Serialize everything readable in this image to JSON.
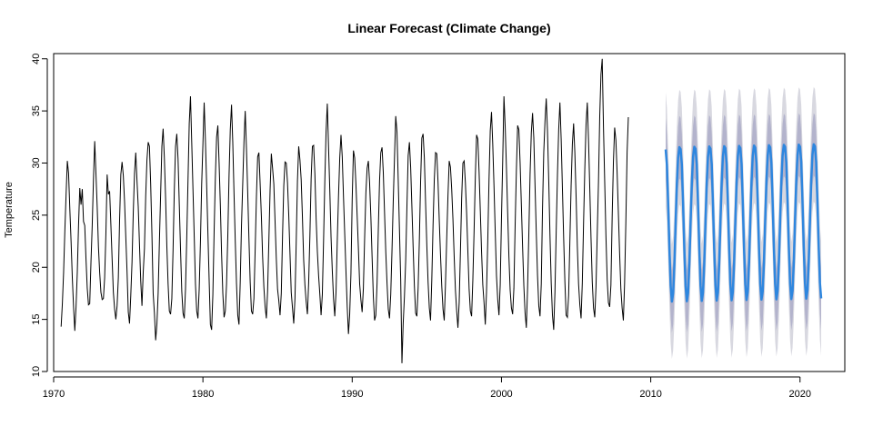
{
  "chart_data": {
    "type": "line",
    "title": "Linear Forecast (Climate Change)",
    "xlabel": "",
    "ylabel": "Temperature",
    "xlim": [
      1970,
      2023
    ],
    "ylim": [
      10,
      40.5
    ],
    "x_ticks": [
      1970,
      1980,
      1990,
      2000,
      2010,
      2020
    ],
    "y_ticks": [
      10,
      15,
      20,
      25,
      30,
      35,
      40
    ],
    "grid": false,
    "legend": "none",
    "colors": {
      "observed": "#000000",
      "forecast": "#2e86de",
      "ci80": "#b3b3cc",
      "ci95": "#d8d8e0"
    },
    "observed": {
      "start_year": 1970.5,
      "step": 0.08333,
      "values": [
        14.3,
        16.5,
        19.5,
        23.5,
        27.0,
        30.2,
        29.0,
        25.6,
        22.5,
        19.0,
        16.2,
        13.9,
        16.2,
        19.5,
        24.0,
        27.6,
        26.0,
        27.5,
        24.4,
        24.0,
        20.8,
        18.0,
        16.4,
        16.5,
        20.5,
        24.0,
        28.4,
        32.1,
        29.0,
        25.8,
        22.0,
        19.5,
        17.6,
        16.9,
        17.0,
        19.0,
        23.2,
        28.9,
        27.0,
        27.3,
        24.1,
        20.8,
        17.6,
        16.0,
        15.0,
        16.3,
        19.0,
        24.5,
        28.9,
        30.1,
        28.8,
        26.3,
        22.9,
        19.6,
        15.7,
        14.6,
        17.3,
        20.5,
        25.2,
        29.0,
        31.0,
        28.3,
        25.8,
        22.2,
        18.7,
        16.3,
        19.5,
        21.8,
        26.8,
        30.3,
        32.0,
        31.6,
        28.0,
        23.2,
        17.5,
        15.6,
        13.0,
        14.5,
        17.5,
        22.4,
        27.0,
        31.6,
        33.3,
        30.5,
        26.6,
        22.0,
        18.4,
        15.8,
        15.5,
        17.0,
        21.7,
        27.4,
        31.6,
        32.8,
        30.4,
        26.0,
        21.7,
        17.7,
        15.6,
        15.1,
        17.9,
        22.8,
        28.3,
        33.8,
        36.4,
        32.0,
        27.5,
        23.0,
        18.4,
        15.8,
        15.1,
        17.9,
        22.4,
        28.0,
        31.8,
        35.8,
        32.2,
        27.9,
        23.3,
        18.8,
        14.5,
        14.0,
        17.4,
        23.4,
        28.6,
        32.5,
        33.6,
        30.0,
        26.0,
        21.3,
        17.5,
        15.2,
        15.8,
        18.4,
        23.0,
        28.8,
        33.2,
        35.6,
        32.0,
        27.1,
        22.5,
        18.4,
        15.4,
        14.5,
        18.6,
        24.0,
        28.0,
        32.0,
        35.0,
        31.4,
        27.2,
        22.7,
        18.6,
        15.8,
        15.5,
        17.0,
        21.7,
        26.7,
        30.6,
        31.0,
        28.0,
        24.9,
        21.0,
        18.1,
        16.2,
        15.1,
        17.7,
        22.5,
        27.4,
        30.9,
        29.5,
        28.0,
        24.4,
        20.8,
        17.9,
        16.8,
        15.4,
        17.5,
        23.0,
        27.8,
        30.1,
        30.0,
        28.1,
        25.0,
        21.3,
        17.6,
        16.1,
        14.6,
        17.0,
        22.4,
        28.3,
        31.6,
        30.3,
        28.4,
        24.8,
        20.7,
        18.3,
        16.7,
        15.5,
        18.5,
        23.0,
        28.5,
        31.6,
        31.7,
        29.0,
        24.7,
        21.5,
        19.2,
        17.4,
        15.4,
        17.4,
        22.6,
        28.3,
        33.0,
        35.7,
        31.5,
        27.4,
        22.9,
        19.7,
        17.0,
        15.3,
        17.6,
        22.5,
        26.8,
        30.5,
        32.7,
        30.6,
        26.8,
        23.2,
        19.6,
        16.2,
        13.6,
        15.5,
        19.4,
        26.5,
        31.2,
        30.5,
        28.0,
        24.9,
        21.8,
        18.4,
        16.9,
        15.7,
        18.0,
        22.8,
        27.1,
        29.5,
        30.2,
        28.1,
        24.9,
        21.0,
        17.2,
        14.9,
        15.4,
        18.5,
        23.6,
        28.3,
        31.0,
        31.5,
        29.1,
        25.3,
        21.5,
        18.5,
        16.0,
        15.1,
        17.4,
        21.6,
        26.3,
        30.5,
        34.5,
        33.0,
        28.4,
        23.6,
        18.8,
        10.8,
        14.6,
        17.2,
        20.6,
        25.8,
        30.7,
        32.0,
        29.6,
        25.8,
        21.9,
        18.2,
        15.6,
        15.3,
        18.0,
        22.6,
        28.2,
        32.4,
        32.8,
        30.5,
        26.2,
        22.1,
        18.6,
        16.1,
        14.9,
        18.8,
        24.0,
        28.4,
        31.0,
        30.9,
        28.2,
        24.5,
        21.2,
        18.2,
        16.0,
        14.9,
        18.4,
        22.8,
        26.9,
        30.2,
        29.6,
        27.5,
        24.6,
        21.0,
        17.8,
        15.8,
        14.2,
        16.6,
        21.4,
        26.6,
        30.0,
        30.2,
        28.1,
        25.2,
        21.5,
        17.9,
        15.8,
        15.3,
        18.8,
        23.5,
        28.7,
        32.7,
        32.3,
        29.2,
        25.4,
        21.5,
        18.3,
        16.6,
        14.5,
        17.7,
        22.6,
        28.4,
        33.1,
        34.9,
        31.8,
        27.8,
        23.4,
        19.2,
        16.9,
        15.4,
        18.3,
        24.6,
        30.2,
        36.4,
        33.5,
        29.6,
        25.2,
        21.0,
        17.8,
        16.1,
        15.5,
        18.0,
        24.0,
        29.3,
        33.6,
        33.2,
        30.0,
        26.0,
        21.9,
        18.2,
        15.6,
        14.2,
        18.0,
        23.2,
        28.9,
        32.9,
        34.8,
        32.4,
        27.8,
        23.3,
        19.2,
        16.3,
        15.3,
        18.4,
        25.6,
        31.0,
        34.0,
        36.2,
        33.1,
        28.4,
        23.1,
        18.5,
        15.4,
        14.0,
        17.6,
        23.4,
        28.8,
        33.2,
        35.8,
        32.3,
        27.6,
        22.8,
        18.6,
        15.4,
        15.2,
        17.3,
        22.5,
        27.8,
        31.8,
        33.8,
        31.0,
        26.8,
        22.0,
        18.4,
        16.4,
        15.1,
        18.5,
        24.2,
        29.4,
        33.7,
        35.8,
        32.2,
        27.6,
        22.8,
        18.6,
        16.1,
        15.2,
        18.1,
        23.2,
        28.2,
        34.5,
        38.5,
        40.0,
        33.5,
        28.2,
        23.0,
        18.8,
        16.6,
        16.2,
        18.3,
        24.8,
        30.1,
        33.4,
        32.2,
        29.0,
        25.2,
        21.3,
        17.9,
        16.1,
        14.9,
        18.5,
        24.3,
        31.0,
        34.4
      ]
    },
    "forecast": {
      "start_year": 2011.0,
      "step": 0.08333,
      "months": 126,
      "mean_cycle": [
        31.3,
        29.8,
        26.0,
        21.7,
        18.2,
        16.7,
        17.5,
        20.2,
        24.2,
        28.0,
        30.5,
        31.5
      ],
      "trend_per_year": 0.03,
      "ci80_halfwidth": 3.0,
      "ci95_halfwidth": 5.5
    }
  }
}
